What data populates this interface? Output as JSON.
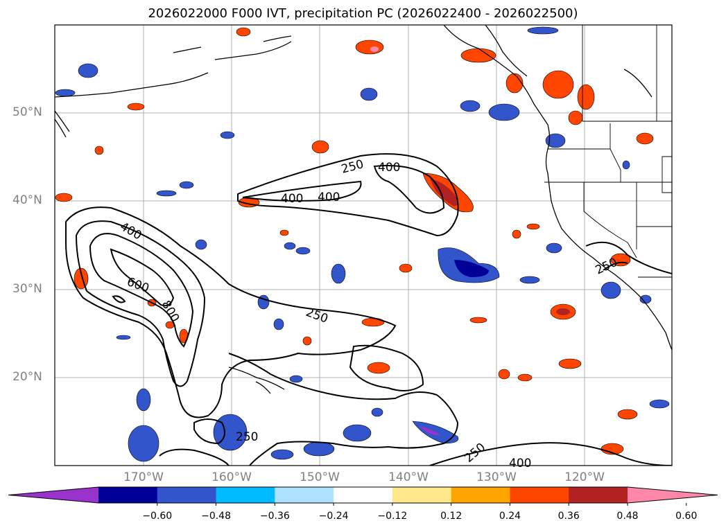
{
  "title": "2026022000 F000 IVT, precipitation PC (2026022400 - 2026022500)",
  "lat_labels": [
    "50°N",
    "40°N",
    "30°N",
    "20°N"
  ],
  "lon_labels": [
    "170°W",
    "160°W",
    "150°W",
    "140°W",
    "130°W",
    "120°W"
  ],
  "contour_labels": [
    "250",
    "400",
    "400",
    "400",
    "400",
    "600",
    "800",
    "250",
    "250",
    "250",
    "250",
    "400"
  ],
  "colorbar": {
    "ticks": [
      "−0.60",
      "−0.48",
      "−0.36",
      "−0.24",
      "−0.12",
      "0.12",
      "0.24",
      "0.36",
      "0.48",
      "0.60"
    ],
    "colors": [
      "#9933cc",
      "#000099",
      "#3355cc",
      "#00bbff",
      "#aee0ff",
      "#ffffff",
      "#ffe98a",
      "#ffa500",
      "#ff4500",
      "#b22222",
      "#ff88aa"
    ]
  }
}
